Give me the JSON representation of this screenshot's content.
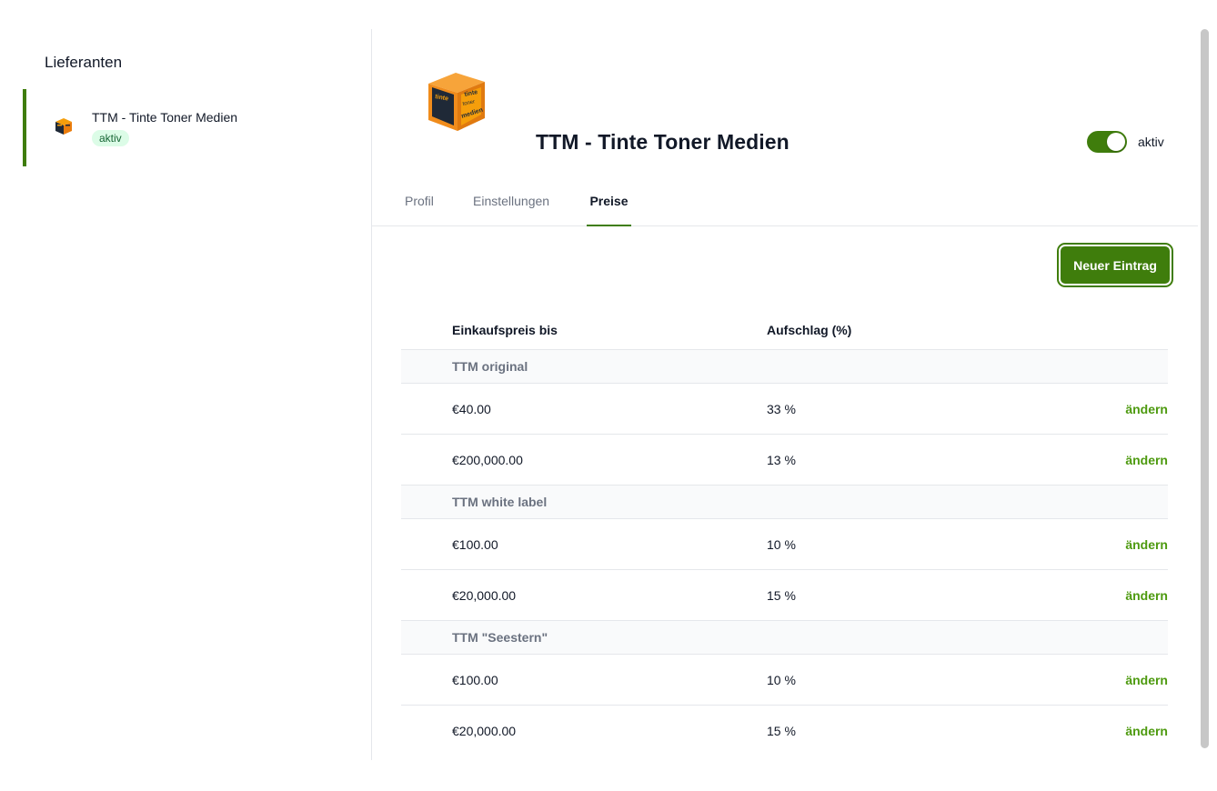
{
  "sidebar": {
    "title": "Lieferanten",
    "items": [
      {
        "label": "TTM - Tinte Toner Medien",
        "status": "aktiv"
      }
    ]
  },
  "supplier": {
    "name": "TTM - Tinte Toner Medien",
    "active_label": "aktiv",
    "active": true
  },
  "tabs": [
    {
      "label": "Profil",
      "active": false
    },
    {
      "label": "Einstellungen",
      "active": false
    },
    {
      "label": "Preise",
      "active": true
    }
  ],
  "actions": {
    "new_entry_label": "Neuer Eintrag"
  },
  "table": {
    "headers": [
      "Einkaufspreis bis",
      "Aufschlag (%)"
    ],
    "edit_label": "ändern",
    "groups": [
      {
        "name": "TTM original",
        "rows": [
          {
            "price": "€40.00",
            "markup": "33 %"
          },
          {
            "price": "€200,000.00",
            "markup": "13 %"
          }
        ]
      },
      {
        "name": "TTM white label",
        "rows": [
          {
            "price": "€100.00",
            "markup": "10 %"
          },
          {
            "price": "€20,000.00",
            "markup": "15 %"
          }
        ]
      },
      {
        "name": "TTM \"Seestern\"",
        "rows": [
          {
            "price": "€100.00",
            "markup": "10 %"
          },
          {
            "price": "€20,000.00",
            "markup": "15 %"
          }
        ]
      }
    ]
  },
  "colors": {
    "accent": "#3f7d0c",
    "link": "#4d9a0f",
    "badge_bg": "#dcfce7",
    "badge_text": "#166534"
  },
  "logo": {
    "icon": "ttm-cube-logo",
    "words": [
      "tinte",
      "toner",
      "medien"
    ]
  }
}
